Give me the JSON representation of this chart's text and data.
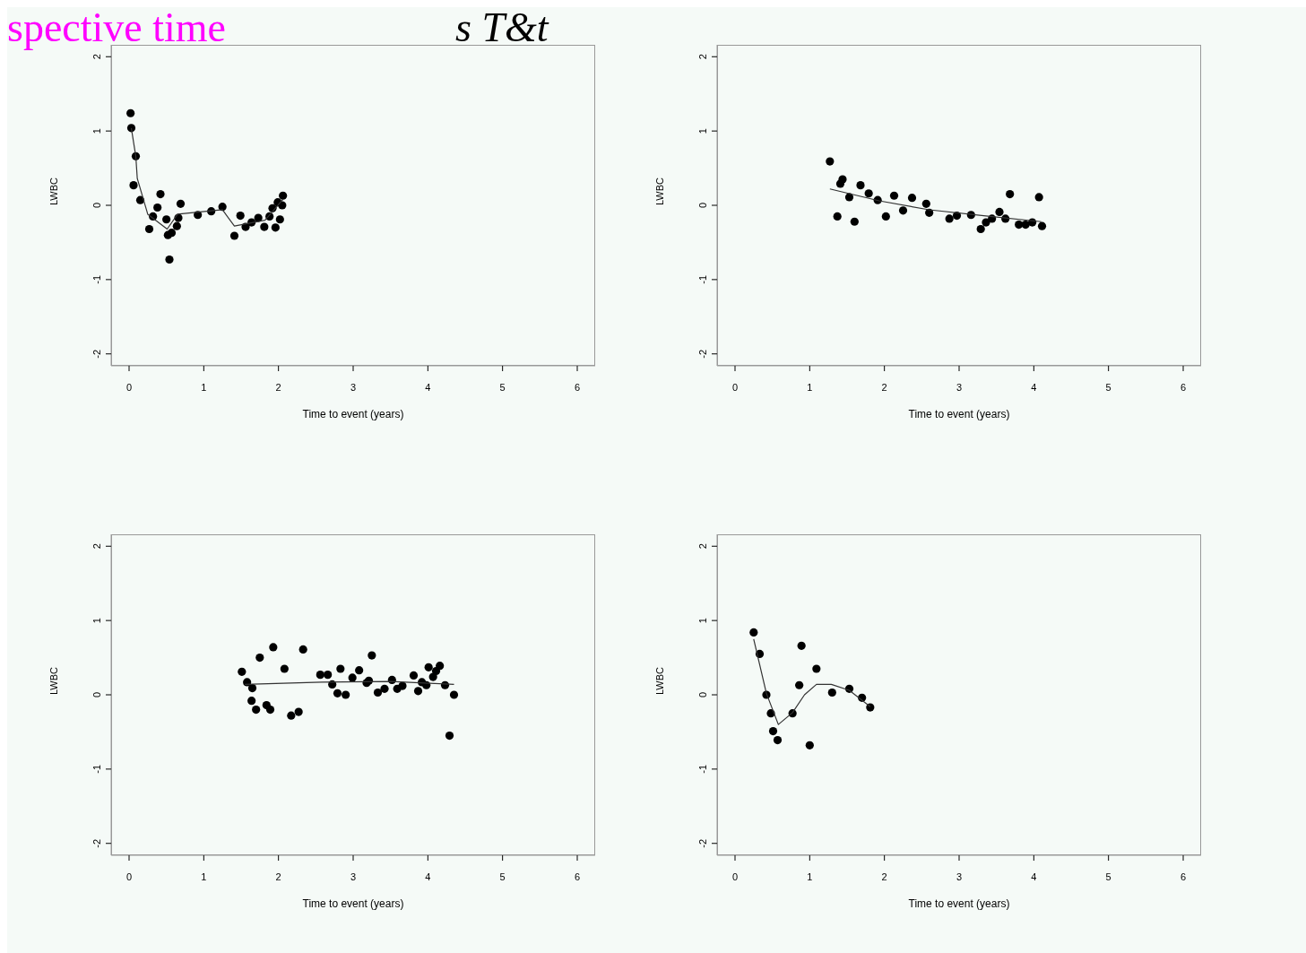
{
  "chart_data": [
    {
      "type": "scatter",
      "annotations": [
        "spective time",
        "s T&t"
      ],
      "xlabel": "Time to event (years)",
      "ylabel": "LWBC",
      "xlim": [
        -0.24,
        6.24
      ],
      "ylim": [
        -2.16,
        2.16
      ],
      "xticks": [
        0,
        1,
        2,
        3,
        4,
        5,
        6
      ],
      "yticks": [
        -2,
        -1,
        0,
        1,
        2
      ],
      "marker": "circle",
      "series": [
        {
          "color": "#000000",
          "x": [
            0.02,
            0.03,
            0.09,
            0.06,
            0.15,
            0.27,
            0.32,
            0.38,
            0.42,
            0.5,
            0.52,
            0.57,
            0.64,
            0.66,
            0.69,
            0.54,
            0.92,
            1.1,
            1.25,
            1.41,
            1.49,
            1.56,
            1.64,
            1.73,
            1.81,
            1.88,
            1.92,
            1.96,
            1.99,
            2.02,
            2.05,
            2.06
          ],
          "values": [
            1.24,
            1.04,
            0.66,
            0.27,
            0.07,
            -0.32,
            -0.15,
            -0.03,
            0.15,
            -0.19,
            -0.4,
            -0.37,
            -0.28,
            -0.17,
            0.02,
            -0.73,
            -0.13,
            -0.08,
            -0.02,
            -0.41,
            -0.14,
            -0.29,
            -0.23,
            -0.17,
            -0.29,
            -0.15,
            -0.04,
            -0.3,
            0.04,
            -0.19,
            0.0,
            0.13
          ]
        },
        {
          "type": "line",
          "color": "#333333",
          "marker": "none",
          "line_style": "solid",
          "x": [
            0.03,
            0.09,
            0.11,
            0.25,
            0.51,
            0.65,
            1.25,
            1.41,
            1.82,
            2.06
          ],
          "values": [
            1.04,
            0.66,
            0.36,
            -0.12,
            -0.32,
            -0.12,
            -0.06,
            -0.28,
            -0.2,
            0.08
          ]
        }
      ]
    },
    {
      "type": "scatter",
      "xlabel": "Time to event (years)",
      "ylabel": "LWBC",
      "xlim": [
        -0.24,
        6.24
      ],
      "ylim": [
        -2.16,
        2.16
      ],
      "xticks": [
        0,
        1,
        2,
        3,
        4,
        5,
        6
      ],
      "yticks": [
        -2,
        -1,
        0,
        1,
        2
      ],
      "marker": "circle",
      "series": [
        {
          "color": "#000000",
          "x": [
            1.27,
            1.37,
            1.41,
            1.44,
            1.53,
            1.6,
            1.68,
            1.79,
            1.91,
            2.02,
            2.13,
            2.25,
            2.37,
            2.56,
            2.6,
            2.87,
            2.97,
            3.16,
            3.29,
            3.36,
            3.44,
            3.54,
            3.62,
            3.68,
            3.8,
            3.89,
            3.98,
            4.07,
            4.11
          ],
          "values": [
            0.59,
            -0.15,
            0.29,
            0.35,
            0.11,
            -0.22,
            0.27,
            0.16,
            0.07,
            -0.15,
            0.13,
            -0.07,
            0.1,
            0.02,
            -0.1,
            -0.18,
            -0.14,
            -0.13,
            -0.32,
            -0.23,
            -0.18,
            -0.09,
            -0.18,
            0.15,
            -0.26,
            -0.26,
            -0.23,
            0.11,
            -0.28
          ]
        },
        {
          "type": "line",
          "color": "#333333",
          "marker": "none",
          "line_style": "solid",
          "x": [
            1.27,
            1.93,
            2.6,
            3.33,
            4.1
          ],
          "values": [
            0.22,
            0.06,
            -0.06,
            -0.14,
            -0.22
          ]
        }
      ]
    },
    {
      "type": "scatter",
      "xlabel": "Time to event (years)",
      "ylabel": "LWBC",
      "xlim": [
        -0.24,
        6.24
      ],
      "ylim": [
        -2.16,
        2.16
      ],
      "xticks": [
        0,
        1,
        2,
        3,
        4,
        5,
        6
      ],
      "yticks": [
        -2,
        -1,
        0,
        1,
        2
      ],
      "marker": "circle",
      "series": [
        {
          "color": "#000000",
          "x": [
            1.51,
            1.58,
            1.65,
            1.64,
            1.7,
            1.75,
            1.84,
            1.89,
            1.93,
            2.08,
            2.17,
            2.27,
            2.33,
            2.56,
            2.66,
            2.72,
            2.79,
            2.83,
            2.9,
            2.99,
            3.08,
            3.18,
            3.21,
            3.25,
            3.33,
            3.42,
            3.52,
            3.59,
            3.66,
            3.81,
            3.87,
            3.92,
            3.98,
            4.01,
            4.07,
            4.11,
            4.16,
            4.23,
            4.35,
            4.29
          ],
          "values": [
            0.31,
            0.17,
            0.09,
            -0.08,
            -0.2,
            0.5,
            -0.14,
            -0.2,
            0.64,
            0.35,
            -0.28,
            -0.23,
            0.61,
            0.27,
            0.27,
            0.14,
            0.02,
            0.35,
            0.0,
            0.23,
            0.33,
            0.16,
            0.19,
            0.53,
            0.03,
            0.08,
            0.2,
            0.08,
            0.12,
            0.26,
            0.05,
            0.17,
            0.13,
            0.37,
            0.24,
            0.32,
            0.39,
            0.13,
            0.0,
            -0.55
          ]
        },
        {
          "type": "line",
          "color": "#333333",
          "marker": "none",
          "line_style": "solid",
          "x": [
            1.55,
            2.58,
            3.5,
            4.35
          ],
          "values": [
            0.14,
            0.17,
            0.18,
            0.14
          ]
        }
      ]
    },
    {
      "type": "scatter",
      "xlabel": "Time to event (years)",
      "ylabel": "LWBC",
      "xlim": [
        -0.24,
        6.24
      ],
      "ylim": [
        -2.16,
        2.16
      ],
      "xticks": [
        0,
        1,
        2,
        3,
        4,
        5,
        6
      ],
      "yticks": [
        -2,
        -1,
        0,
        1,
        2
      ],
      "marker": "circle",
      "series": [
        {
          "color": "#000000",
          "x": [
            0.25,
            0.33,
            0.42,
            0.48,
            0.51,
            0.57,
            0.77,
            0.86,
            0.89,
            1.0,
            1.09,
            1.3,
            1.53,
            1.7,
            1.81
          ],
          "values": [
            0.84,
            0.55,
            0.0,
            -0.25,
            -0.49,
            -0.61,
            -0.25,
            0.13,
            0.66,
            -0.68,
            0.35,
            0.03,
            0.08,
            -0.04,
            -0.17
          ]
        },
        {
          "type": "line",
          "color": "#333333",
          "marker": "none",
          "line_style": "solid",
          "x": [
            0.25,
            0.42,
            0.58,
            0.77,
            0.93,
            1.09,
            1.29,
            1.53,
            1.81
          ],
          "values": [
            0.75,
            0.02,
            -0.4,
            -0.24,
            0.0,
            0.14,
            0.14,
            0.06,
            -0.16
          ]
        }
      ]
    }
  ]
}
